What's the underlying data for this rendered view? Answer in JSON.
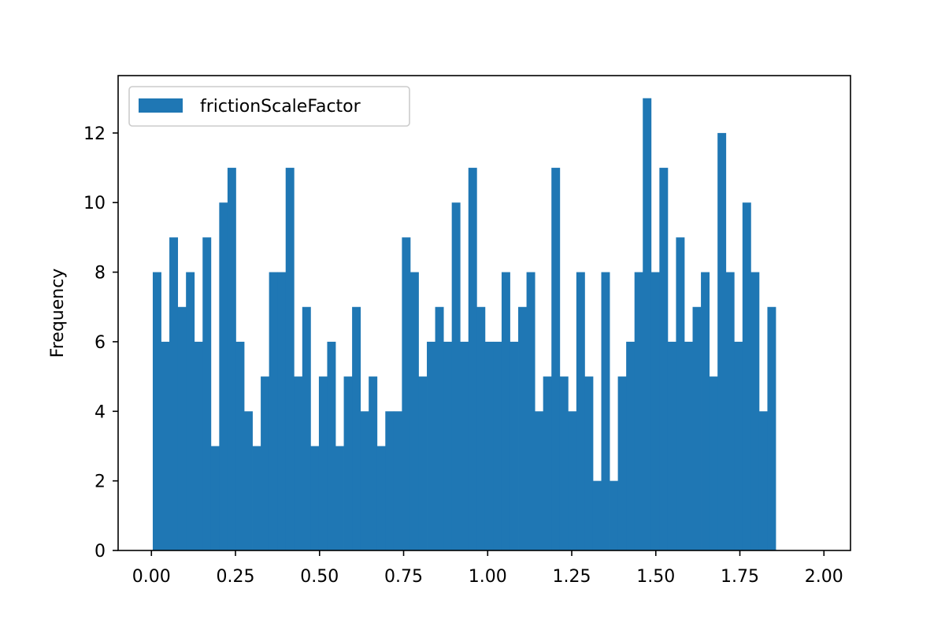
{
  "chart_data": {
    "type": "bar",
    "title": "",
    "xlabel": "",
    "ylabel": "Frequency",
    "xlim": [
      -0.099,
      2.079
    ],
    "ylim": [
      0,
      13.65
    ],
    "bin_start": 0.004,
    "bin_width": 0.0247,
    "x_ticks": [
      0.0,
      0.25,
      0.5,
      0.75,
      1.0,
      1.25,
      1.5,
      1.75,
      2.0
    ],
    "x_tick_labels": [
      "0.00",
      "0.25",
      "0.50",
      "0.75",
      "1.00",
      "1.25",
      "1.50",
      "1.75",
      "2.00"
    ],
    "y_ticks": [
      0,
      2,
      4,
      6,
      8,
      10,
      12
    ],
    "y_tick_labels": [
      "0",
      "2",
      "4",
      "6",
      "8",
      "10",
      "12"
    ],
    "grid": false,
    "legend_position": "top-left",
    "series": [
      {
        "name": "frictionScaleFactor",
        "color": "#1f77b4",
        "values": [
          8,
          6,
          9,
          7,
          8,
          6,
          9,
          3,
          10,
          11,
          6,
          4,
          3,
          5,
          8,
          8,
          11,
          5,
          7,
          3,
          5,
          6,
          3,
          5,
          7,
          4,
          5,
          3,
          4,
          4,
          9,
          8,
          5,
          6,
          7,
          6,
          10,
          6,
          11,
          7,
          6,
          6,
          8,
          6,
          7,
          8,
          4,
          5,
          11,
          5,
          4,
          8,
          5,
          2,
          8,
          2,
          5,
          6,
          8,
          13,
          8,
          11,
          6,
          9,
          6,
          7,
          8,
          5,
          12,
          8,
          6,
          10,
          8,
          4,
          7
        ]
      }
    ]
  }
}
